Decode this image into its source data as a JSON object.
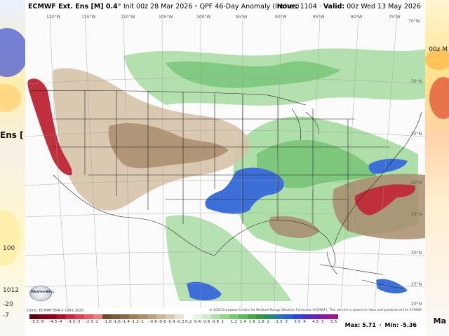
{
  "header": {
    "model": "ECMWF Ext. Ens [M] 0.4°",
    "init_label": "Init 00z 28 Mar 2026",
    "product": "QPF 46-Day Anomaly (Inches)",
    "hour_label": "Hour:",
    "hour_value": "1104",
    "valid_label": "Valid:",
    "valid_value": "00z Wed 13 May 2026"
  },
  "map": {
    "lon_labels": [
      "120°W",
      "115°W",
      "110°W",
      "105°W",
      "100°W",
      "95°W",
      "90°W",
      "85°W",
      "80°W",
      "75°W",
      "70°W"
    ],
    "lat_labels": [
      "50°N",
      "45°N",
      "40°N",
      "35°N",
      "30°N",
      "25°N",
      "20°N"
    ],
    "logo_text": "WeatherBELL"
  },
  "footer": {
    "climo": "Climo: ECMWF ERA-5 1991-2020",
    "copyright": "© 2026 European Centre for Medium-Range Weather Forecasts (ECMWF). This service is based on data and products of the ECMWF.",
    "colorbar_ticks": [
      "-5.5",
      "-5",
      "-4.5",
      "-4",
      "-3.5",
      "-3",
      "-2.5",
      "-2",
      "-1.8",
      "-1.6",
      "-1.4",
      "-1.2",
      "-1",
      "-0.8",
      "-0.6",
      "-0.4",
      "-0.2",
      "0.2",
      "0.4",
      "0.6",
      "0.8",
      "1",
      "1.2",
      "1.4",
      "1.6",
      "1.8",
      "2",
      "2.5",
      "3",
      "3.5",
      "4",
      "4.5",
      "5",
      "5.5"
    ],
    "colorbar_colors": [
      "#5c0010",
      "#7a0018",
      "#96001f",
      "#b00f2a",
      "#c9283b",
      "#d94454",
      "#e25f6a",
      "#ea7d80",
      "#6b4a2e",
      "#7d5a3a",
      "#8c6a48",
      "#9c7b58",
      "#ac8c6a",
      "#bca07f",
      "#cdb596",
      "#dcc9b0",
      "#ece0d0",
      "#ffffff",
      "#e6f5e2",
      "#cdebc8",
      "#b2e0ab",
      "#96d48e",
      "#7bc673",
      "#61b75b",
      "#4aa648",
      "#35963b",
      "#2b8a6a",
      "#2a76b5",
      "#2a5fd1",
      "#2b47d9",
      "#4c2fc4",
      "#6a23b0",
      "#851c9c",
      "#9e1888"
    ],
    "max_label": "Max: 5.71",
    "min_label": "Min: -5.36"
  },
  "side_panels": {
    "left_title": "Ens [",
    "left_numbers": [
      "1012",
      "100",
      "-20",
      "-7"
    ],
    "right_title": "00z M",
    "right_bottom": "Ma"
  }
}
